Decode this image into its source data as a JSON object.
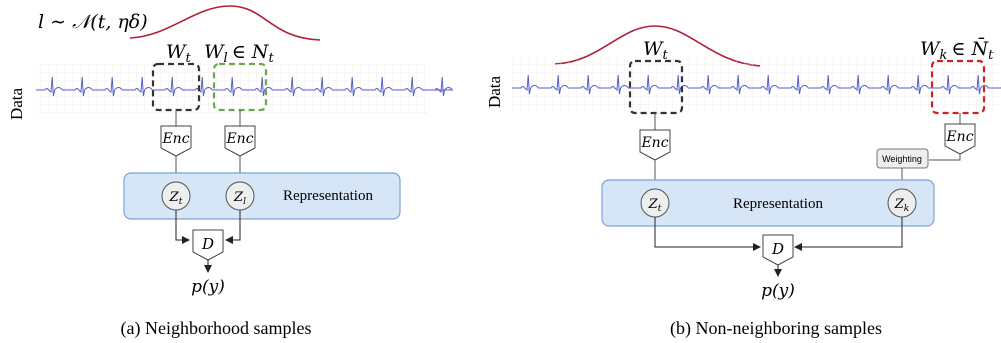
{
  "panel_a": {
    "sampling_label": "l ∼ 𝒩(t, ηδ)",
    "axis_label": "Data",
    "window_t": "W",
    "window_t_sub": "t",
    "window_l": "W",
    "window_l_sub": "l",
    "window_l_rel": "∈ N",
    "window_l_rel_sub": "t",
    "enc_left": "Enc",
    "enc_right": "Enc",
    "z_left": "Z",
    "z_left_sub": "t",
    "z_right": "Z",
    "z_right_sub": "l",
    "representation": "Representation",
    "discriminator": "D",
    "output": "p(y)",
    "caption": "(a) Neighborhood samples"
  },
  "panel_b": {
    "axis_label": "Data",
    "window_t": "W",
    "window_t_sub": "t",
    "window_k": "W",
    "window_k_sub": "k",
    "window_k_rel": "∈ N̄",
    "window_k_rel_sub": "t",
    "enc_left": "Enc",
    "enc_right": "Enc",
    "weighting": "Weighting",
    "z_left": "Z",
    "z_left_sub": "t",
    "z_right": "Z",
    "z_right_sub": "k",
    "representation": "Representation",
    "discriminator": "D",
    "output": "p(y)",
    "caption": "(b) Non-neighboring samples"
  },
  "colors": {
    "signal": "#5560c8",
    "gaussian": "#b0203a",
    "box_t": "#333333",
    "box_l": "#6aa84f",
    "box_k": "#cc2222",
    "representation_fill": "#d6e6f7",
    "representation_stroke": "#7da4d6"
  }
}
